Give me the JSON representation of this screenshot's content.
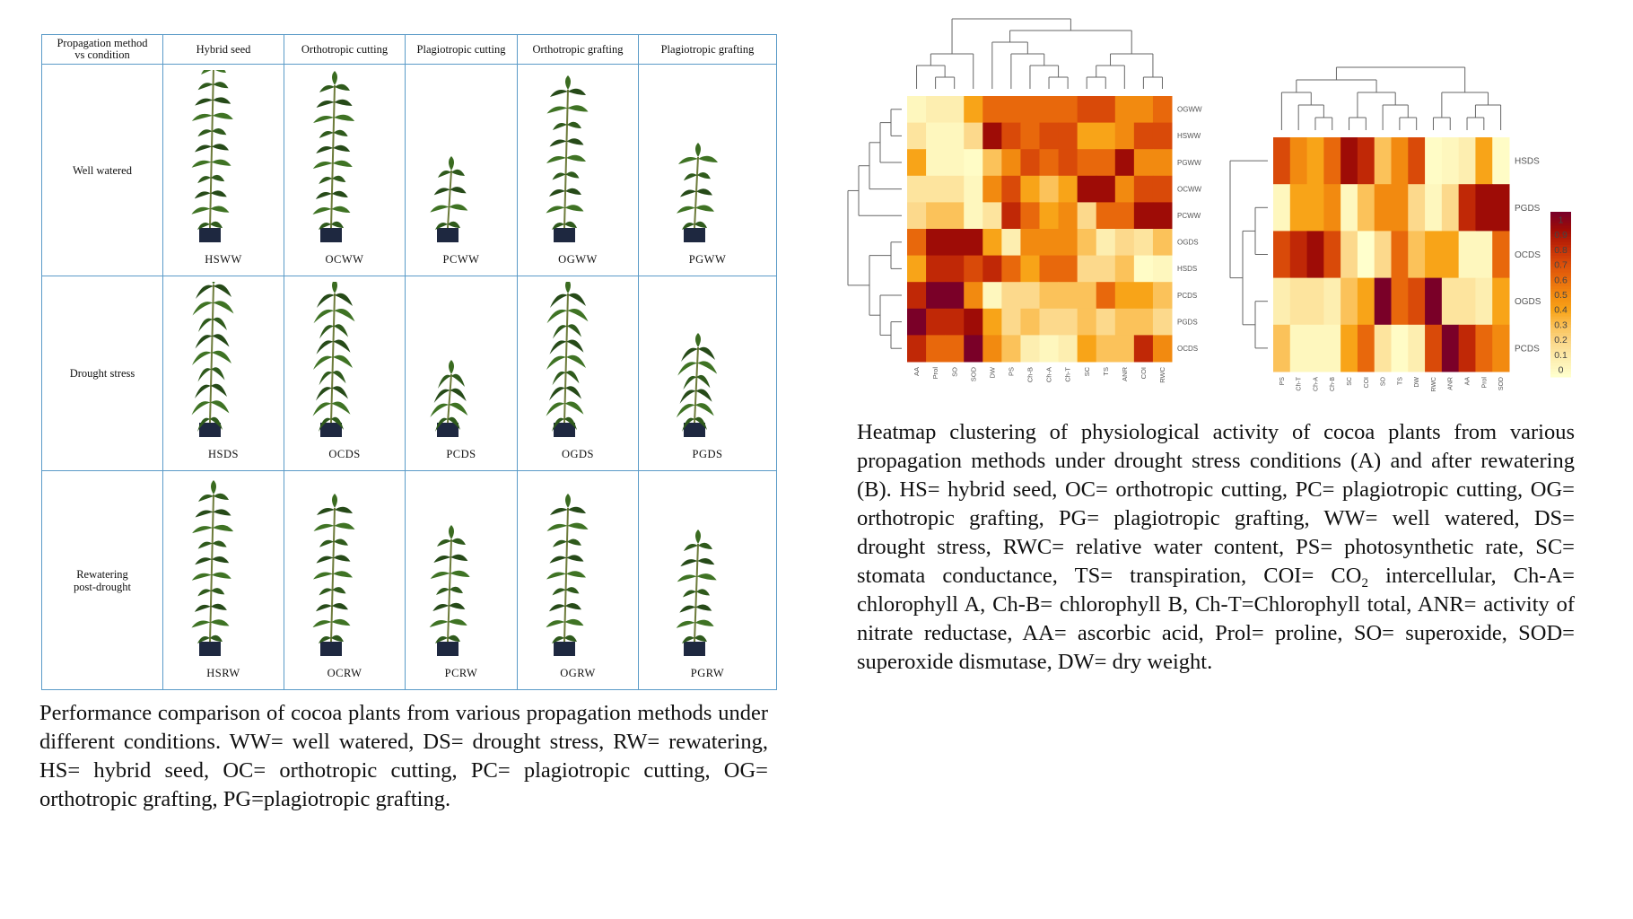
{
  "figure_left": {
    "table": {
      "corner_header": [
        "Propagation method",
        "vs condition"
      ],
      "columns": [
        "Hybrid seed",
        "Orthotropic cutting",
        "Plagiotropic cutting",
        "Orthotropic grafting",
        "Plagiotropic grafting"
      ],
      "rows": [
        {
          "condition": [
            "Well watered"
          ],
          "labels": [
            "HSWW",
            "OCWW",
            "PCWW",
            "OGWW",
            "PGWW"
          ]
        },
        {
          "condition": [
            "Drought stress"
          ],
          "labels": [
            "HSDS",
            "OCDS",
            "PCDS",
            "OGDS",
            "PGDS"
          ]
        },
        {
          "condition": [
            "Rewatering",
            "post-drought"
          ],
          "labels": [
            "HSRW",
            "OCRW",
            "PCRW",
            "OGRW",
            "PGRW"
          ]
        }
      ]
    },
    "caption": "Performance comparison of cocoa plants from various propagation methods under different conditions. WW= well watered, DS= drought stress, RW= rewatering, HS= hybrid seed, OC= orthotropic cutting, PC= plagiotropic cutting, OG= orthotropic grafting, PG=plagiotropic grafting."
  },
  "figure_right": {
    "caption_before": "Heatmap clustering of physiological activity of cocoa plants from various propagation methods under drought stress conditions (A) and after rewatering (B). HS= hybrid seed, OC= orthotropic cutting, PC= plagiotropic cutting, OG= orthotropic grafting, PG= plagiotropic grafting, WW= well watered, DS= drought stress, RWC= relative water content, PS= photosynthetic rate, SC= stomata conductance, TS= transpiration, COI= CO",
    "caption_sub": "2",
    "caption_after": " intercellular, Ch-A= chlorophyll A, Ch-B= chlorophyll B, Ch-T=Chlorophyll total, ANR= activity of nitrate reductase, AA= ascorbic acid, Prol= proline, SO= superoxide, SOD= superoxide dismutase, DW= dry weight."
  },
  "colors": {
    "table_border": "#5b9bc8",
    "colormap": [
      "#ffffcc",
      "#fdeeb0",
      "#fcd98c",
      "#fbc25a",
      "#f8a418",
      "#f28a10",
      "#e8680c",
      "#d94a09",
      "#c02806",
      "#9e0c06",
      "#7a0028"
    ]
  },
  "chart_data": [
    {
      "type": "heatmap",
      "rows": [
        "OGWW",
        "HSWW",
        "PGWW",
        "OCWW",
        "PCWW",
        "OGDS",
        "HSDS",
        "PCDS",
        "PGDS",
        "OCDS"
      ],
      "columns": [
        "AA",
        "Prol",
        "SO",
        "SOD",
        "DW",
        "PS",
        "Ch-B",
        "Ch-A",
        "Ch-T",
        "SC",
        "TS",
        "ANR",
        "COI",
        "RWC"
      ],
      "values": [
        [
          0.05,
          0.1,
          0.1,
          0.4,
          0.6,
          0.6,
          0.6,
          0.6,
          0.6,
          0.7,
          0.7,
          0.5,
          0.5,
          0.6
        ],
        [
          0.15,
          0.05,
          0.05,
          0.2,
          0.9,
          0.7,
          0.6,
          0.7,
          0.7,
          0.4,
          0.4,
          0.5,
          0.7,
          0.7
        ],
        [
          0.4,
          0.05,
          0.05,
          0.02,
          0.3,
          0.5,
          0.7,
          0.6,
          0.7,
          0.6,
          0.6,
          0.9,
          0.5,
          0.5
        ],
        [
          0.15,
          0.15,
          0.15,
          0.05,
          0.5,
          0.7,
          0.4,
          0.3,
          0.4,
          0.9,
          0.9,
          0.5,
          0.7,
          0.7
        ],
        [
          0.2,
          0.3,
          0.3,
          0.05,
          0.15,
          0.8,
          0.6,
          0.4,
          0.5,
          0.2,
          0.6,
          0.6,
          0.9,
          0.9
        ],
        [
          0.6,
          0.9,
          0.9,
          0.9,
          0.4,
          0.1,
          0.5,
          0.5,
          0.5,
          0.3,
          0.1,
          0.2,
          0.15,
          0.3
        ],
        [
          0.4,
          0.8,
          0.8,
          0.7,
          0.8,
          0.6,
          0.4,
          0.6,
          0.6,
          0.2,
          0.2,
          0.3,
          0.02,
          0.05
        ],
        [
          0.8,
          1,
          1,
          0.5,
          0.05,
          0.2,
          0.2,
          0.3,
          0.3,
          0.3,
          0.6,
          0.4,
          0.4,
          0.3
        ],
        [
          1,
          0.8,
          0.8,
          0.9,
          0.4,
          0.2,
          0.3,
          0.2,
          0.2,
          0.3,
          0.2,
          0.3,
          0.3,
          0.2
        ],
        [
          0.8,
          0.6,
          0.6,
          1,
          0.5,
          0.3,
          0.1,
          0.05,
          0.1,
          0.4,
          0.3,
          0.3,
          0.8,
          0.5
        ]
      ],
      "dendrogram": {
        "rows": true,
        "columns": true
      },
      "zlim": [
        0,
        1
      ]
    },
    {
      "type": "heatmap",
      "rows": [
        "HSDS",
        "PGDS",
        "OCDS",
        "OGDS",
        "PCDS"
      ],
      "columns": [
        "PS",
        "Ch-T",
        "Ch-A",
        "Ch-B",
        "SC",
        "COI",
        "SO",
        "TS",
        "DW",
        "RWC",
        "ANR",
        "AA",
        "Prol",
        "SOD"
      ],
      "values": [
        [
          0.7,
          0.5,
          0.4,
          0.6,
          0.9,
          0.8,
          0.3,
          0.5,
          0.7,
          0.02,
          0.05,
          0.1,
          0.4,
          0.02
        ],
        [
          0.05,
          0.4,
          0.4,
          0.5,
          0.05,
          0.3,
          0.5,
          0.5,
          0.2,
          0.05,
          0.2,
          0.8,
          0.9,
          0.9
        ],
        [
          0.7,
          0.8,
          0.9,
          0.7,
          0.2,
          0.0,
          0.2,
          0.6,
          0.3,
          0.4,
          0.4,
          0.05,
          0.05,
          0.6
        ],
        [
          0.1,
          0.15,
          0.15,
          0.1,
          0.3,
          0.4,
          1,
          0.6,
          0.7,
          1,
          0.15,
          0.15,
          0.1,
          0.4
        ],
        [
          0.3,
          0.05,
          0.05,
          0.05,
          0.4,
          0.6,
          0.15,
          0.02,
          0.1,
          0.7,
          1,
          0.8,
          0.6,
          0.5
        ]
      ],
      "dendrogram": {
        "rows": true,
        "columns": true
      },
      "zlim": [
        0,
        1
      ],
      "legend": {
        "ticks": [
          "1",
          "0.9",
          "0.8",
          "0.7",
          "0.6",
          "0.5",
          "0.4",
          "0.3",
          "0.2",
          "0.1",
          "0"
        ],
        "placement": "right"
      }
    }
  ]
}
